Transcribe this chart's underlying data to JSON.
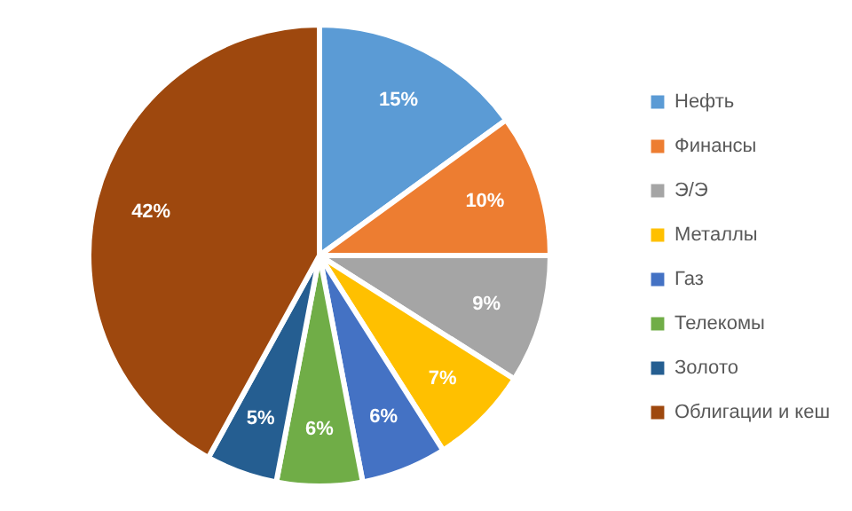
{
  "chart_data": {
    "type": "pie",
    "categories": [
      "Нефть",
      "Финансы",
      "Э/Э",
      "Металлы",
      "Газ",
      "Телекомы",
      "Золото",
      "Облигации и кеш"
    ],
    "values": [
      15,
      10,
      9,
      7,
      6,
      6,
      5,
      42
    ],
    "colors": [
      "#5b9bd5",
      "#ed7d31",
      "#a5a5a5",
      "#ffc000",
      "#4472c4",
      "#70ad47",
      "#255e91",
      "#9e480e"
    ],
    "value_labels": [
      "15%",
      "10%",
      "9%",
      "7%",
      "6%",
      "6%",
      "5%",
      "42%"
    ],
    "legend": "right"
  }
}
